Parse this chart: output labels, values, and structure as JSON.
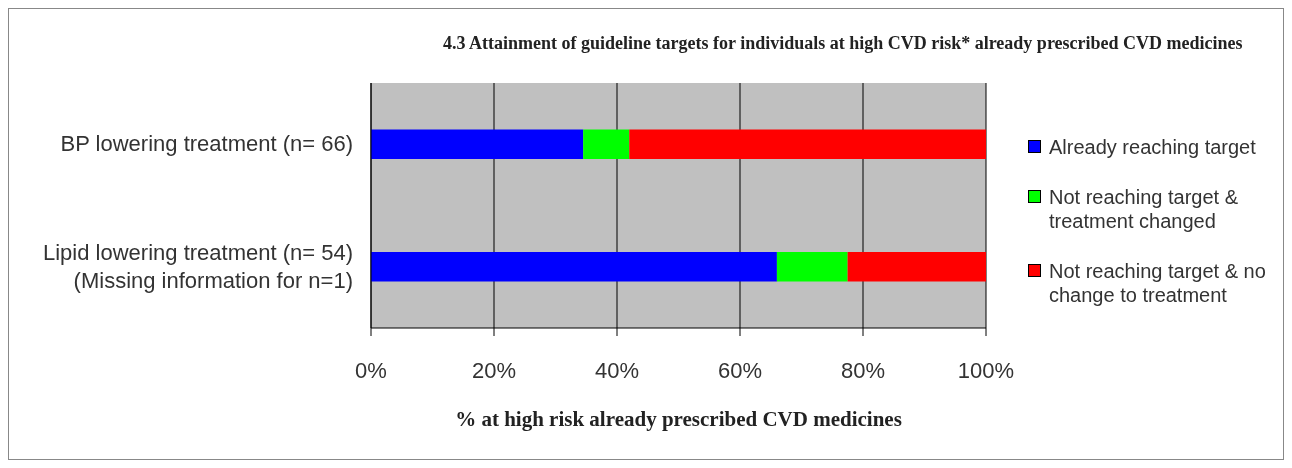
{
  "chart_data": {
    "type": "bar",
    "orientation": "horizontal",
    "stacked": true,
    "title": "4.3 Attainment of guideline targets for individuals at high CVD risk* already prescribed CVD medicines",
    "xlabel": "% at high risk already prescribed CVD medicines",
    "categories": [
      "BP lowering treatment (n= 66)",
      "Lipid lowering treatment (n= 54)\n(Missing information for n=1)"
    ],
    "series": [
      {
        "name": "Already reaching target",
        "color": "#0000ff",
        "values": [
          34.5,
          66
        ]
      },
      {
        "name": "Not reaching target & treatment changed",
        "color": "#00ff00",
        "values": [
          7.5,
          11.5
        ]
      },
      {
        "name": "Not reaching target & no change to treatment",
        "color": "#ff0000",
        "values": [
          58,
          22.5
        ]
      }
    ],
    "xlim": [
      0,
      100
    ],
    "xticks": [
      {
        "value": 0,
        "label": "0%"
      },
      {
        "value": 20,
        "label": "20%"
      },
      {
        "value": 40,
        "label": "40%"
      },
      {
        "value": 60,
        "label": "60%"
      },
      {
        "value": 80,
        "label": "80%"
      },
      {
        "value": 100,
        "label": "100%"
      }
    ],
    "grid": "x",
    "legend": "right"
  }
}
